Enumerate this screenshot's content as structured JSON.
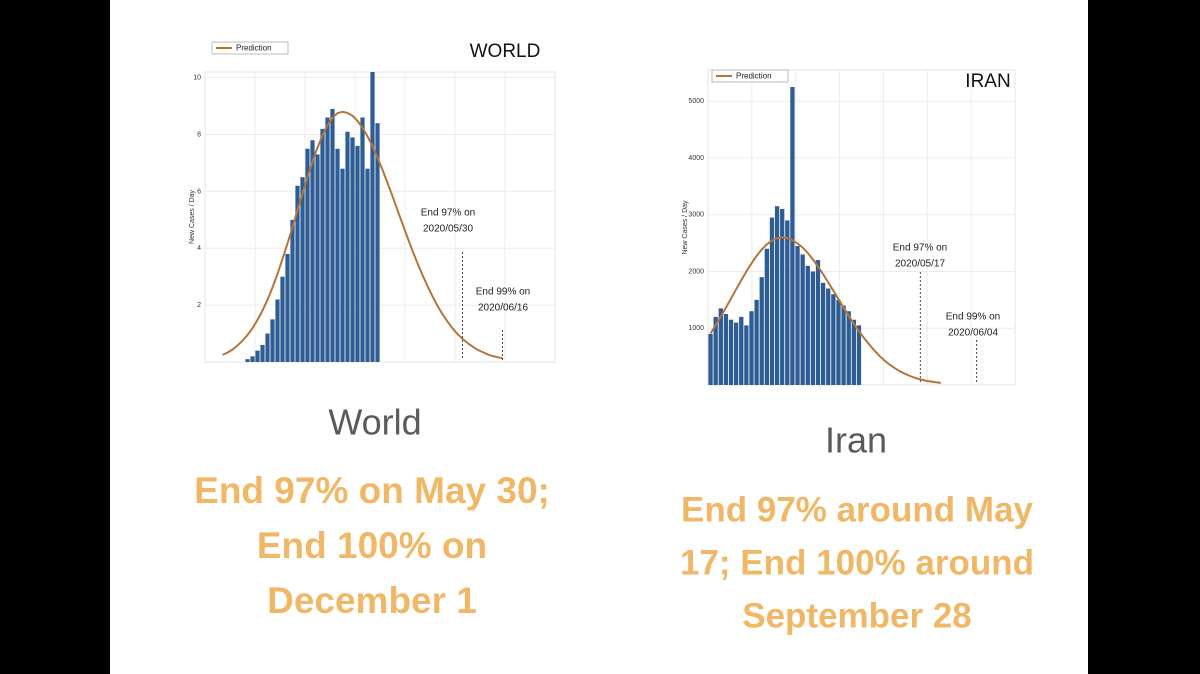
{
  "chart_data": [
    {
      "type": "bar",
      "title": "WORLD",
      "y_label": "New Cases / Day",
      "grid": true,
      "categories": [
        null,
        null,
        null,
        null,
        null,
        null,
        null,
        null,
        null,
        null,
        null,
        null,
        null,
        null,
        null,
        null,
        null,
        null,
        null,
        null,
        null,
        null,
        null,
        null,
        null,
        null,
        null,
        null,
        null,
        null,
        null,
        null,
        null,
        null,
        null,
        null,
        null,
        null,
        null,
        null,
        null,
        null,
        null,
        null,
        null,
        null,
        null,
        null,
        null,
        null,
        null,
        null,
        null,
        null,
        null,
        null,
        null,
        null,
        null,
        null,
        null,
        null,
        null,
        null,
        null,
        null,
        null,
        null,
        null,
        null
      ],
      "ylim": [
        0,
        10.2
      ],
      "yticks": [
        2,
        4,
        6,
        8,
        10
      ],
      "series": [
        {
          "type": "bar",
          "color": "#2d5d94",
          "values": [
            null,
            null,
            null,
            null,
            null,
            null,
            null,
            null,
            0.1,
            0.2,
            0.4,
            0.6,
            1,
            1.5,
            2.2,
            3,
            3.8,
            5,
            6.2,
            6.5,
            7.5,
            7.8,
            7.3,
            8.2,
            8.6,
            8.9,
            7.5,
            6.8,
            8.1,
            7.9,
            7.6,
            8.6,
            6.8,
            10.2,
            8.4,
            null,
            null,
            null,
            null,
            null,
            null,
            null,
            null,
            null,
            null,
            null,
            null,
            null,
            null,
            null,
            null,
            null,
            null,
            null,
            null,
            null,
            null,
            null,
            null,
            null,
            null,
            null,
            null,
            null,
            null,
            null,
            null,
            null,
            null,
            null
          ]
        },
        {
          "type": "line",
          "name": "Prediction",
          "color": "#b5743a",
          "values": [
            null,
            null,
            null,
            0.25,
            0.33,
            0.44,
            0.58,
            0.75,
            0.95,
            1.19,
            1.48,
            1.81,
            2.19,
            2.62,
            3.1,
            3.62,
            4.17,
            4.75,
            5.34,
            5.93,
            6.5,
            7.05,
            7.54,
            7.97,
            8.33,
            8.59,
            8.75,
            8.8,
            8.76,
            8.66,
            8.48,
            8.24,
            7.94,
            7.59,
            7.19,
            6.76,
            6.3,
            5.83,
            5.34,
            4.86,
            4.38,
            3.91,
            3.47,
            3.06,
            2.67,
            2.31,
            1.98,
            1.68,
            1.42,
            1.19,
            0.98,
            0.82,
            0.67,
            0.54,
            0.43,
            0.35,
            0.27,
            0.21,
            0.17,
            0.13,
            null,
            null,
            null,
            null,
            null,
            null,
            null,
            null,
            null,
            null
          ]
        }
      ],
      "annotations": [
        [
          "End 97% on",
          "2020/05/30"
        ],
        [
          "End 99% on",
          "2020/06/16"
        ]
      ]
    },
    {
      "type": "bar",
      "title": "IRAN",
      "y_label": "New Cases / Day",
      "grid": true,
      "categories": [
        null,
        null,
        null,
        null,
        null,
        null,
        null,
        null,
        null,
        null,
        null,
        null,
        null,
        null,
        null,
        null,
        null,
        null,
        null,
        null,
        null,
        null,
        null,
        null,
        null,
        null,
        null,
        null,
        null,
        null,
        null,
        null,
        null,
        null,
        null,
        null,
        null,
        null,
        null,
        null,
        null,
        null,
        null,
        null,
        null,
        null,
        null,
        null,
        null,
        null,
        null,
        null,
        null,
        null,
        null,
        null,
        null,
        null,
        null,
        null
      ],
      "ylim": [
        0,
        5550
      ],
      "yticks": [
        1000,
        2000,
        3000,
        4000,
        5000
      ],
      "series": [
        {
          "type": "bar",
          "color": "#2d5d94",
          "values": [
            900,
            1200,
            1350,
            1250,
            1150,
            1100,
            1200,
            1050,
            1300,
            1500,
            1900,
            2400,
            2950,
            3150,
            3100,
            2900,
            5250,
            2450,
            2300,
            2100,
            2000,
            2200,
            1800,
            1700,
            1600,
            1500,
            1400,
            1300,
            1150,
            1050,
            null,
            null,
            null,
            null,
            null,
            null,
            null,
            null,
            null,
            null,
            null,
            null,
            null,
            null,
            null,
            null,
            null,
            null,
            null,
            null,
            null,
            null,
            null,
            null,
            null,
            null,
            null,
            null,
            null,
            null
          ]
        },
        {
          "type": "line",
          "name": "Prediction",
          "color": "#b5743a",
          "values": [
            910,
            1053,
            1204,
            1360,
            1523,
            1686,
            1846,
            2002,
            2145,
            2275,
            2388,
            2478,
            2546,
            2586,
            2600,
            2588,
            2553,
            2495,
            2420,
            2325,
            2213,
            2088,
            1952,
            1807,
            1661,
            1511,
            1362,
            1219,
            1079,
            949,
            826,
            713,
            609,
            515,
            431,
            359,
            296,
            242,
            197,
            159,
            125,
            99,
            78,
            62,
            47,
            37,
            null,
            null,
            null,
            null,
            null,
            null,
            null,
            null,
            null,
            null,
            null,
            null,
            null,
            null
          ]
        }
      ],
      "annotations": [
        [
          "End 97% on",
          "2020/05/17"
        ],
        [
          "End 99% on",
          "2020/06/04"
        ]
      ]
    }
  ],
  "panels": [
    {
      "caption": "World",
      "summary": [
        "End 97% on May 30;",
        "End 100% on",
        "December 1"
      ]
    },
    {
      "caption": "Iran",
      "summary": [
        "End 97% around May",
        "17; End 100% around",
        "September 28"
      ]
    }
  ]
}
